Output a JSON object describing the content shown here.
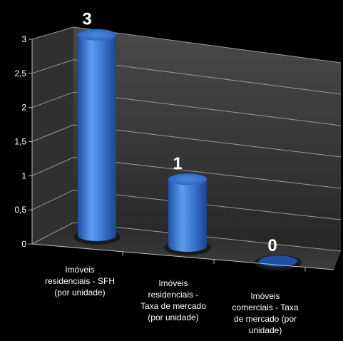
{
  "chart_data": {
    "type": "bar",
    "title": "",
    "xlabel": "",
    "ylabel": "",
    "categories": [
      [
        "Imóveis",
        "residenciais - SFH",
        "(por unidade)"
      ],
      [
        "Imóveis",
        "residenciais -",
        "Taxa de mercado",
        "(por unidade)"
      ],
      [
        "Imóveis",
        "comerciais - Taxa",
        "de mercado (por",
        "unidade)"
      ]
    ],
    "values": [
      3,
      1,
      0
    ],
    "data_labels": [
      "3",
      "1",
      "0"
    ],
    "y_ticks": [
      "0",
      "0,5",
      "1",
      "1,5",
      "2",
      "2,5",
      "3"
    ],
    "ylim": [
      0,
      3
    ],
    "grid": true,
    "legend": "none",
    "style": "3d-cylinder",
    "colors": {
      "bar": "#3f7fd6",
      "bar_dark": "#1f4fa0",
      "background": "#000000",
      "wall": "#3a3a3a",
      "grid": "#9a9a9a"
    }
  }
}
